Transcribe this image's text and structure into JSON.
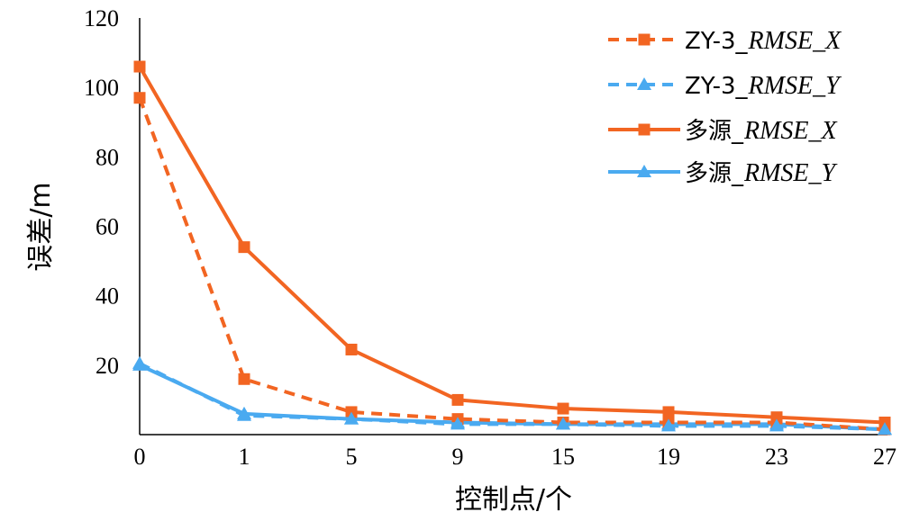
{
  "chart_data": {
    "type": "line",
    "xlabel": "控制点/个",
    "ylabel": "误差/m",
    "categories": [
      "0",
      "1",
      "5",
      "9",
      "15",
      "19",
      "23",
      "27"
    ],
    "ylim": [
      0,
      120
    ],
    "yticks": [
      "120",
      "100",
      "80",
      "60",
      "40",
      "20"
    ],
    "series": [
      {
        "name": "ZY-3_RMSE_X",
        "legend_prefix": "ZY-3_",
        "legend_suffix": "RMSE_X",
        "color": "#f26522",
        "dash": true,
        "marker": "square",
        "values": [
          97,
          16,
          6.5,
          4.5,
          3.5,
          3.5,
          3.5,
          1.5
        ]
      },
      {
        "name": "ZY-3_RMSE_Y",
        "legend_prefix": "ZY-3_",
        "legend_suffix": "RMSE_Y",
        "color": "#4aaaf0",
        "dash": true,
        "marker": "triangle",
        "values": [
          20.5,
          5.5,
          4.5,
          3,
          3,
          2.5,
          2.5,
          1.5
        ]
      },
      {
        "name": "多源_RMSE_X",
        "legend_prefix": "多源_",
        "legend_suffix": "RMSE_X",
        "color": "#f26522",
        "dash": false,
        "marker": "square",
        "values": [
          106,
          54,
          24.5,
          10,
          7.5,
          6.5,
          5,
          3.5
        ]
      },
      {
        "name": "多源_RMSE_Y",
        "legend_prefix": "多源_",
        "legend_suffix": "RMSE_Y",
        "color": "#4aaaf0",
        "dash": false,
        "marker": "triangle",
        "values": [
          20,
          6,
          4.5,
          3.5,
          3,
          3,
          3,
          1.5
        ]
      }
    ],
    "legend_position": "top-right",
    "grid": false
  }
}
